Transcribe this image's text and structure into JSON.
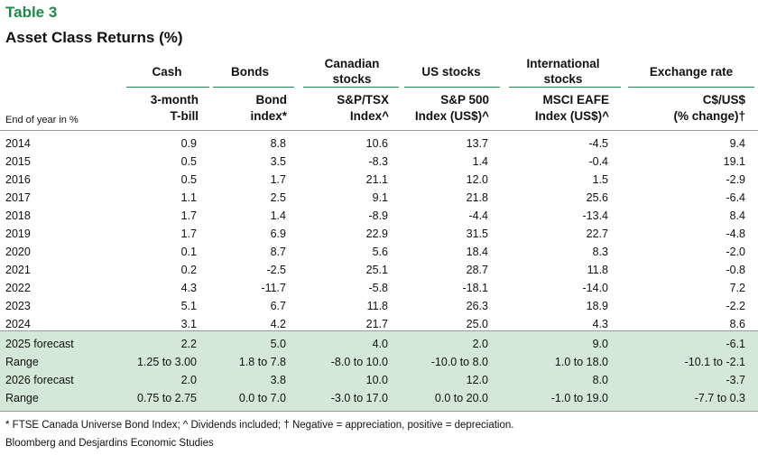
{
  "table": {
    "title": "Table 3",
    "subtitle": "Asset Class Returns (%)",
    "row_header_label": "End of year in %",
    "groups": [
      {
        "name": "Cash",
        "sub": [
          "3-month",
          "T-bill"
        ]
      },
      {
        "name": "Bonds",
        "sub": [
          "Bond",
          "index*"
        ]
      },
      {
        "name": "Canadian stocks",
        "name_lines": [
          "Canadian",
          "stocks"
        ],
        "sub": [
          "S&P/TSX",
          "Index^"
        ]
      },
      {
        "name": "US stocks",
        "sub": [
          "S&P 500",
          "Index (US$)^"
        ]
      },
      {
        "name": "International stocks",
        "name_lines": [
          "International",
          "stocks"
        ],
        "sub": [
          "MSCI EAFE",
          "Index (US$)^"
        ]
      },
      {
        "name": "Exchange rate",
        "sub": [
          "C$/US$",
          "(% change)†"
        ]
      }
    ],
    "rows": [
      {
        "label": "2014",
        "values": [
          "0.9",
          "8.8",
          "10.6",
          "13.7",
          "-4.5",
          "9.4"
        ]
      },
      {
        "label": "2015",
        "values": [
          "0.5",
          "3.5",
          "-8.3",
          "1.4",
          "-0.4",
          "19.1"
        ]
      },
      {
        "label": "2016",
        "values": [
          "0.5",
          "1.7",
          "21.1",
          "12.0",
          "1.5",
          "-2.9"
        ]
      },
      {
        "label": "2017",
        "values": [
          "1.1",
          "2.5",
          "9.1",
          "21.8",
          "25.6",
          "-6.4"
        ]
      },
      {
        "label": "2018",
        "values": [
          "1.7",
          "1.4",
          "-8.9",
          "-4.4",
          "-13.4",
          "8.4"
        ]
      },
      {
        "label": "2019",
        "values": [
          "1.7",
          "6.9",
          "22.9",
          "31.5",
          "22.7",
          "-4.8"
        ]
      },
      {
        "label": "2020",
        "values": [
          "0.1",
          "8.7",
          "5.6",
          "18.4",
          "8.3",
          "-2.0"
        ]
      },
      {
        "label": "2021",
        "values": [
          "0.2",
          "-2.5",
          "25.1",
          "28.7",
          "11.8",
          "-0.8"
        ]
      },
      {
        "label": "2022",
        "values": [
          "4.3",
          "-11.7",
          "-5.8",
          "-18.1",
          "-14.0",
          "7.2"
        ]
      },
      {
        "label": "2023",
        "values": [
          "5.1",
          "6.7",
          "11.8",
          "26.3",
          "18.9",
          "-2.2"
        ]
      },
      {
        "label": "2024",
        "values": [
          "3.1",
          "4.2",
          "21.7",
          "25.0",
          "4.3",
          "8.6"
        ]
      }
    ],
    "forecast_rows": [
      {
        "label": "2025 forecast",
        "values": [
          "2.2",
          "5.0",
          "4.0",
          "2.0",
          "9.0",
          "-6.1"
        ]
      },
      {
        "label": "Range",
        "values": [
          "1.25 to 3.00",
          "1.8 to 7.8",
          "-8.0 to 10.0",
          "-10.0 to 8.0",
          "1.0 to 18.0",
          "-10.1 to -2.1"
        ]
      },
      {
        "label": "2026 forecast",
        "values": [
          "2.0",
          "3.8",
          "10.0",
          "12.0",
          "8.0",
          "-3.7"
        ]
      },
      {
        "label": "Range",
        "values": [
          "0.75 to 2.75",
          "0.0 to 7.0",
          "-3.0 to 17.0",
          "0.0 to 20.0",
          "-1.0 to 19.0",
          "-7.7 to 0.3"
        ]
      }
    ],
    "footnote": "* FTSE Canada Universe Bond Index; ^ Dividends included; † Negative = appreciation, positive = depreciation.",
    "source": "Bloomberg and Desjardins Economic Studies",
    "accent_color": "#1e8a4a",
    "forecast_bg": "#d3e8d8"
  }
}
